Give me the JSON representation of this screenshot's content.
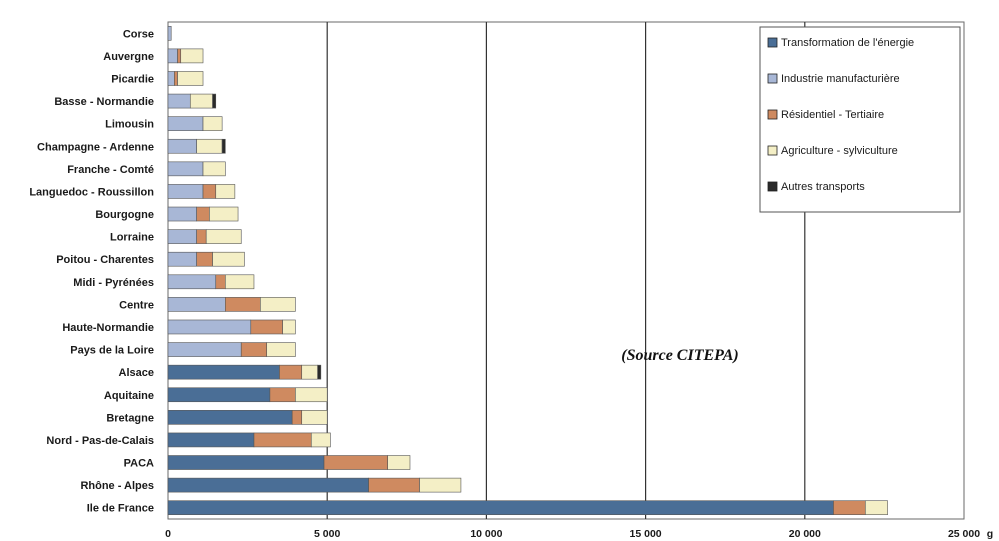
{
  "chart_data": {
    "type": "bar",
    "orientation": "horizontal",
    "stacked": true,
    "categories": [
      "Corse",
      "Auvergne",
      "Picardie",
      "Basse - Normandie",
      "Limousin",
      "Champagne - Ardenne",
      "Franche - Comté",
      "Languedoc - Roussillon",
      "Bourgogne",
      "Lorraine",
      "Poitou - Charentes",
      "Midi - Pyrénées",
      "Centre",
      "Haute-Normandie",
      "Pays de la Loire",
      "Alsace",
      "Aquitaine",
      "Bretagne",
      "Nord - Pas-de-Calais",
      "PACA",
      "Rhône - Alpes",
      "Ile de France"
    ],
    "series": [
      {
        "name": "Transformation de l'énergie",
        "color": "#4a6e96",
        "values": [
          0,
          0,
          0,
          0,
          0,
          0,
          0,
          0,
          0,
          0,
          0,
          0,
          0,
          0,
          0,
          3500,
          3200,
          3900,
          2700,
          4900,
          6300,
          20900
        ]
      },
      {
        "name": "Industrie manufacturière",
        "color": "#a8b7d6",
        "values": [
          100,
          300,
          200,
          700,
          1100,
          900,
          1100,
          1100,
          900,
          900,
          900,
          1500,
          1800,
          2600,
          2300,
          0,
          0,
          0,
          0,
          0,
          0,
          0
        ]
      },
      {
        "name": "Résidentiel - Tertiaire",
        "color": "#cf8a60",
        "values": [
          0,
          100,
          100,
          0,
          0,
          0,
          0,
          400,
          400,
          300,
          500,
          300,
          1100,
          1000,
          800,
          700,
          800,
          300,
          1800,
          2000,
          1600,
          1000
        ]
      },
      {
        "name": "Agriculture - sylviculture",
        "color": "#f4efc6",
        "values": [
          0,
          700,
          800,
          700,
          600,
          800,
          700,
          600,
          900,
          1100,
          1000,
          900,
          1100,
          400,
          900,
          500,
          1000,
          800,
          600,
          700,
          1300,
          700
        ]
      },
      {
        "name": "Autres transports",
        "color": "#2a2a2a",
        "values": [
          0,
          0,
          0,
          100,
          0,
          100,
          0,
          0,
          0,
          0,
          0,
          0,
          0,
          0,
          0,
          100,
          0,
          0,
          0,
          0,
          0,
          0
        ]
      }
    ],
    "xticks": [
      "0",
      "5 000",
      "10 000",
      "15 000",
      "20 000",
      "25 000"
    ],
    "xunit": "g",
    "xlim": [
      0,
      25000
    ],
    "grid": "vertical",
    "legend_position": "top-right",
    "annotation": "(Source CITEPA)"
  }
}
